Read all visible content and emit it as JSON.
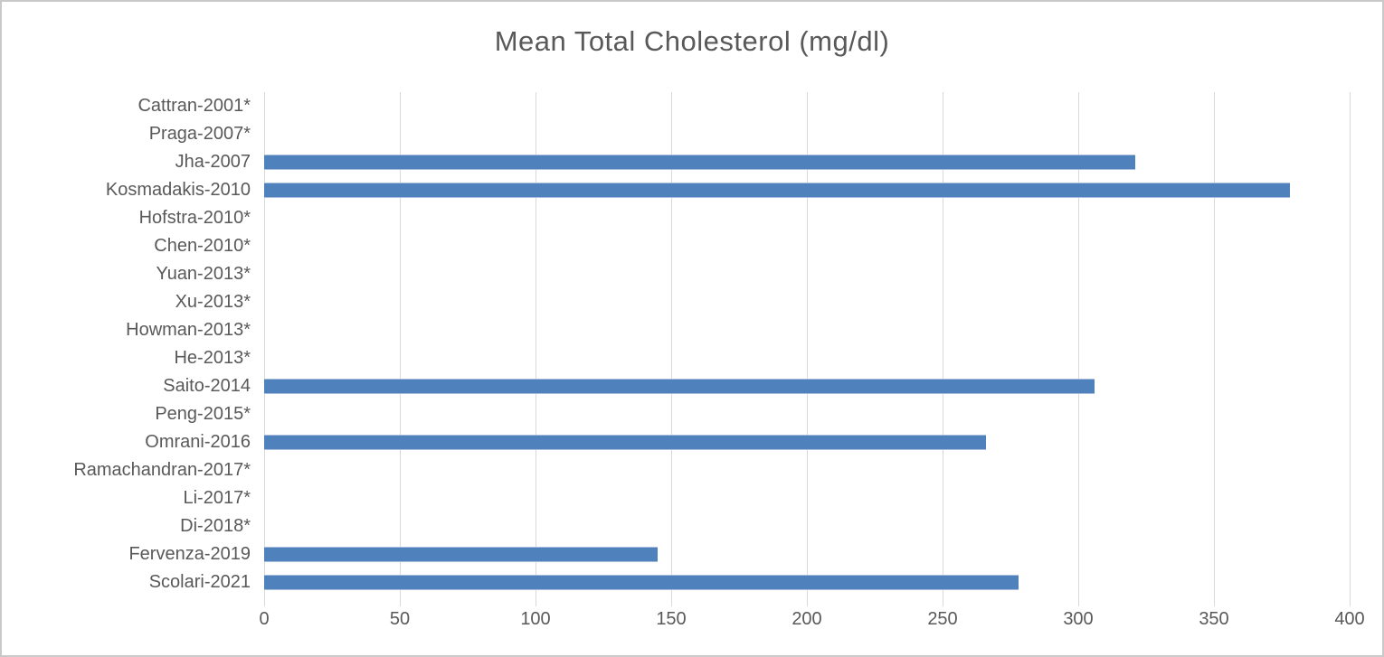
{
  "chart_data": {
    "type": "bar",
    "orientation": "horizontal",
    "title": "Mean Total Cholesterol (mg/dl)",
    "categories": [
      "Cattran-2001*",
      "Praga-2007*",
      "Jha-2007",
      "Kosmadakis-2010",
      "Hofstra-2010*",
      "Chen-2010*",
      "Yuan-2013*",
      "Xu-2013*",
      "Howman-2013*",
      "He-2013*",
      "Saito-2014",
      "Peng-2015*",
      "Omrani-2016",
      "Ramachandran-2017*",
      "Li-2017*",
      "Di-2018*",
      "Fervenza-2019",
      "Scolari-2021"
    ],
    "values": [
      null,
      null,
      321,
      378,
      null,
      null,
      null,
      null,
      null,
      null,
      306,
      null,
      266,
      null,
      null,
      null,
      145,
      278
    ],
    "xlabel": "",
    "ylabel": "",
    "xlim": [
      0,
      400
    ],
    "x_ticks": [
      0,
      50,
      100,
      150,
      200,
      250,
      300,
      350,
      400
    ],
    "grid": true,
    "legend": null
  },
  "colors": {
    "bar_fill": "#4f81bd",
    "bar_edge": "#a9bedd",
    "gridline": "#d9d9d9",
    "text": "#595959",
    "frame": "#c9c9c9",
    "background": "#ffffff"
  }
}
